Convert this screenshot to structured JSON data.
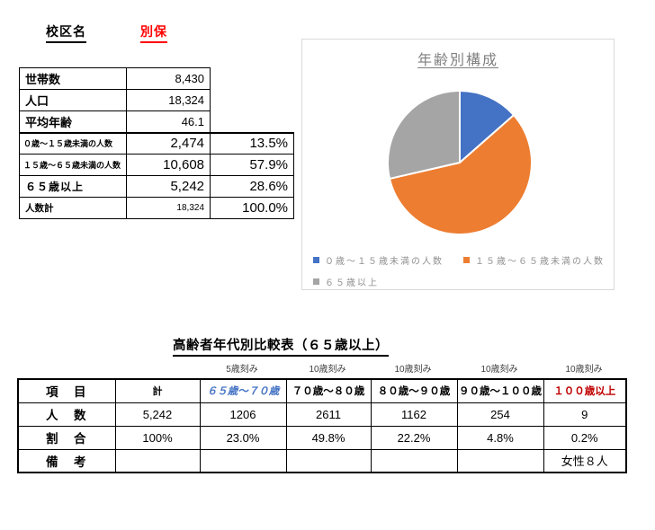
{
  "header": {
    "district_label": "校区名",
    "district_name": "別保",
    "district_name_color": "#ff0000"
  },
  "summary_table": {
    "basic_rows": [
      {
        "label": "世帯数",
        "value": "8,430"
      },
      {
        "label": "人口",
        "value": "18,324"
      },
      {
        "label": "平均年齢",
        "value": "46.1"
      }
    ],
    "age_rows": [
      {
        "label": "０歳～１５歳未満の人数",
        "value": "2,474",
        "percent": "13.5%"
      },
      {
        "label": "１５歳～６５歳未満の人数",
        "value": "10,608",
        "percent": "57.9%"
      },
      {
        "label": "６５歳以上",
        "value": "5,242",
        "percent": "28.6%"
      },
      {
        "label": "人数計",
        "value": "18,324",
        "percent": "100.0%"
      }
    ]
  },
  "chart_data": {
    "type": "pie",
    "title": "年齢別構成",
    "labels": [
      "０歳～１５歳未満の人数",
      "１５歳～６５歳未満の人数",
      "６５歳以上"
    ],
    "values": [
      13.5,
      57.9,
      28.6
    ],
    "colors": [
      "#4472c4",
      "#ed7d31",
      "#a5a5a5"
    ],
    "start_angle_deg": 0,
    "direction": "clockwise",
    "legend_position": "bottom",
    "title_color": "#7f7f7f",
    "legend_text_color": "#8f8f8f"
  },
  "comparison_table": {
    "title": "高齢者年代別比較表（６５歳以上）",
    "interval_labels": [
      "5歳刻み",
      "10歳刻み",
      "10歳刻み",
      "10歳刻み",
      "10歳刻み"
    ],
    "header": {
      "item": "項　目",
      "total": "計",
      "cols": [
        {
          "label": "６５歳～７０歳",
          "color": "#4472c4"
        },
        {
          "label": "７０歳～８０歳",
          "color": "#000000"
        },
        {
          "label": "８０歳～９０歳",
          "color": "#000000"
        },
        {
          "label": "９０歳～１００歳",
          "color": "#000000"
        },
        {
          "label": "１００歳以上",
          "color": "#c00000"
        }
      ]
    },
    "rows": [
      {
        "label": "人　数",
        "total": "5,242",
        "cells": [
          "1206",
          "2611",
          "1162",
          "254",
          "9"
        ]
      },
      {
        "label": "割　合",
        "total": "100%",
        "cells": [
          "23.0%",
          "49.8%",
          "22.2%",
          "4.8%",
          "0.2%"
        ]
      },
      {
        "label": "備　考",
        "total": "",
        "cells": [
          "",
          "",
          "",
          "",
          "女性８人"
        ]
      }
    ]
  }
}
